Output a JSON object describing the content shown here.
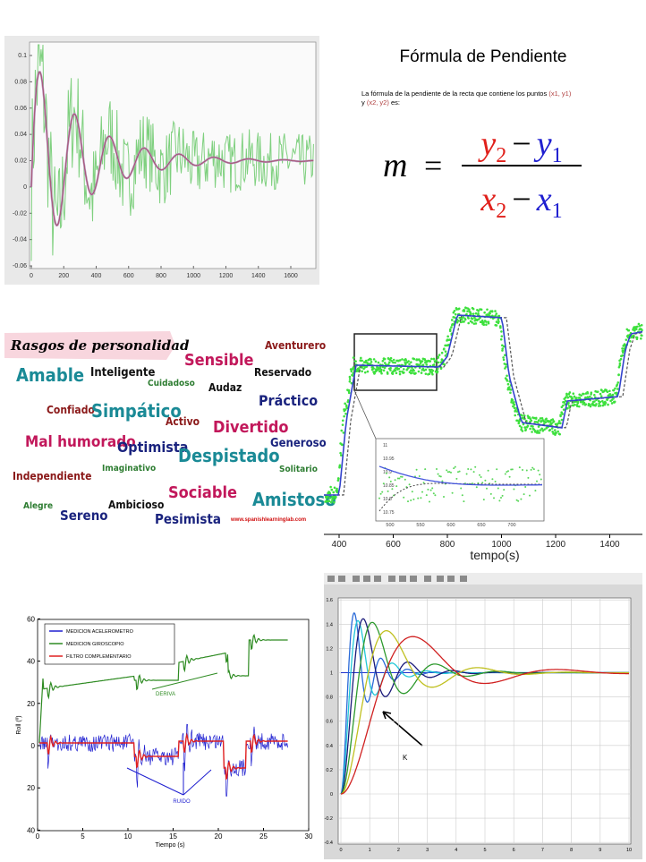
{
  "panels": {
    "damped": {
      "xticks": [
        0,
        200,
        400,
        600,
        800,
        1000,
        1200,
        1400,
        1600
      ],
      "yticks": [
        0.1,
        0.08,
        0.06,
        0.04,
        0.02,
        0,
        -0.02,
        -0.04,
        -0.06
      ]
    },
    "formula": {
      "title": "Fórmula de Pendiente",
      "intro": "La fórmula de la pendiente de la recta que contiene los puntos",
      "p1": "(x1, y1)",
      "conj": "y",
      "p2": "(x2, y2)",
      "tail": "es:",
      "lhs": "m",
      "eq": "=",
      "num": [
        "y",
        "2",
        "−",
        "y",
        "1"
      ],
      "den": [
        "x",
        "2",
        "−",
        "x",
        "1"
      ]
    },
    "word_cloud": {
      "title": "Rasgos de personalidad",
      "credit": "www.spanishlearninglab.com",
      "words": [
        {
          "text": "Aventurero",
          "color": "#8b1a1a"
        },
        {
          "text": "Sensible",
          "color": "#c2185b"
        },
        {
          "text": "Amable",
          "color": "#1a8a96"
        },
        {
          "text": "Inteligente",
          "color": "#111111"
        },
        {
          "text": "Reservado",
          "color": "#111111"
        },
        {
          "text": "Cuidadoso",
          "color": "#2e7d32"
        },
        {
          "text": "Audaz",
          "color": "#111111"
        },
        {
          "text": "Práctico",
          "color": "#1a237e"
        },
        {
          "text": "Confiado",
          "color": "#8b1a1a"
        },
        {
          "text": "Simpático",
          "color": "#1a8a96"
        },
        {
          "text": "Activo",
          "color": "#8b1a1a"
        },
        {
          "text": "Divertido",
          "color": "#c2185b"
        },
        {
          "text": "Mal humorado",
          "color": "#c2185b"
        },
        {
          "text": "Optimista",
          "color": "#1a237e"
        },
        {
          "text": "Generoso",
          "color": "#1a237e"
        },
        {
          "text": "Despistado",
          "color": "#1a8a96"
        },
        {
          "text": "Imaginativo",
          "color": "#2e7d32"
        },
        {
          "text": "Solitario",
          "color": "#2e7d32"
        },
        {
          "text": "Independiente",
          "color": "#8b1a1a"
        },
        {
          "text": "Sociable",
          "color": "#c2185b"
        },
        {
          "text": "Amistoso",
          "color": "#1a8a96"
        },
        {
          "text": "Alegre",
          "color": "#2e7d32"
        },
        {
          "text": "Ambicioso",
          "color": "#111111"
        },
        {
          "text": "Sereno",
          "color": "#1a237e"
        },
        {
          "text": "Pesimista",
          "color": "#1a237e"
        }
      ]
    },
    "step": {
      "xticks": [
        400,
        600,
        800,
        1000,
        1200,
        1400
      ],
      "xlabel": "tempo(s)",
      "inset_xticks": [
        500,
        550,
        600,
        650,
        700
      ],
      "inset_yticks": [
        11,
        10.95,
        10.9,
        10.85,
        10.8,
        10.75
      ]
    },
    "roll": {
      "legend": [
        {
          "name": "MEDICION ACELEROMETRO",
          "color": "#1f1fd0"
        },
        {
          "name": "MEDICION GIROSCOPIO",
          "color": "#2e8b22"
        },
        {
          "name": "FILTRO COMPLEMENTARIO",
          "color": "#e02020"
        }
      ],
      "deriva": "DERIVA",
      "ruido": "RUIDO",
      "xlabel": "Tiempo (s)",
      "ylabel": "Roll (º)",
      "xticks": [
        0,
        5,
        10,
        15,
        20,
        25,
        30
      ],
      "yticks": [
        60,
        40,
        20,
        0,
        {
          "value": -20,
          "label": "20"
        },
        {
          "value": -40,
          "label": "40"
        }
      ]
    },
    "matlab": {
      "yticks": [
        1.6,
        1.4,
        1.2,
        1,
        0.8,
        0.6,
        0.4,
        0.2,
        0,
        -0.2,
        -0.4
      ],
      "xticks": [
        0,
        1,
        2,
        3,
        4,
        5,
        6,
        7,
        8,
        9,
        10
      ],
      "annotation": "K"
    }
  }
}
